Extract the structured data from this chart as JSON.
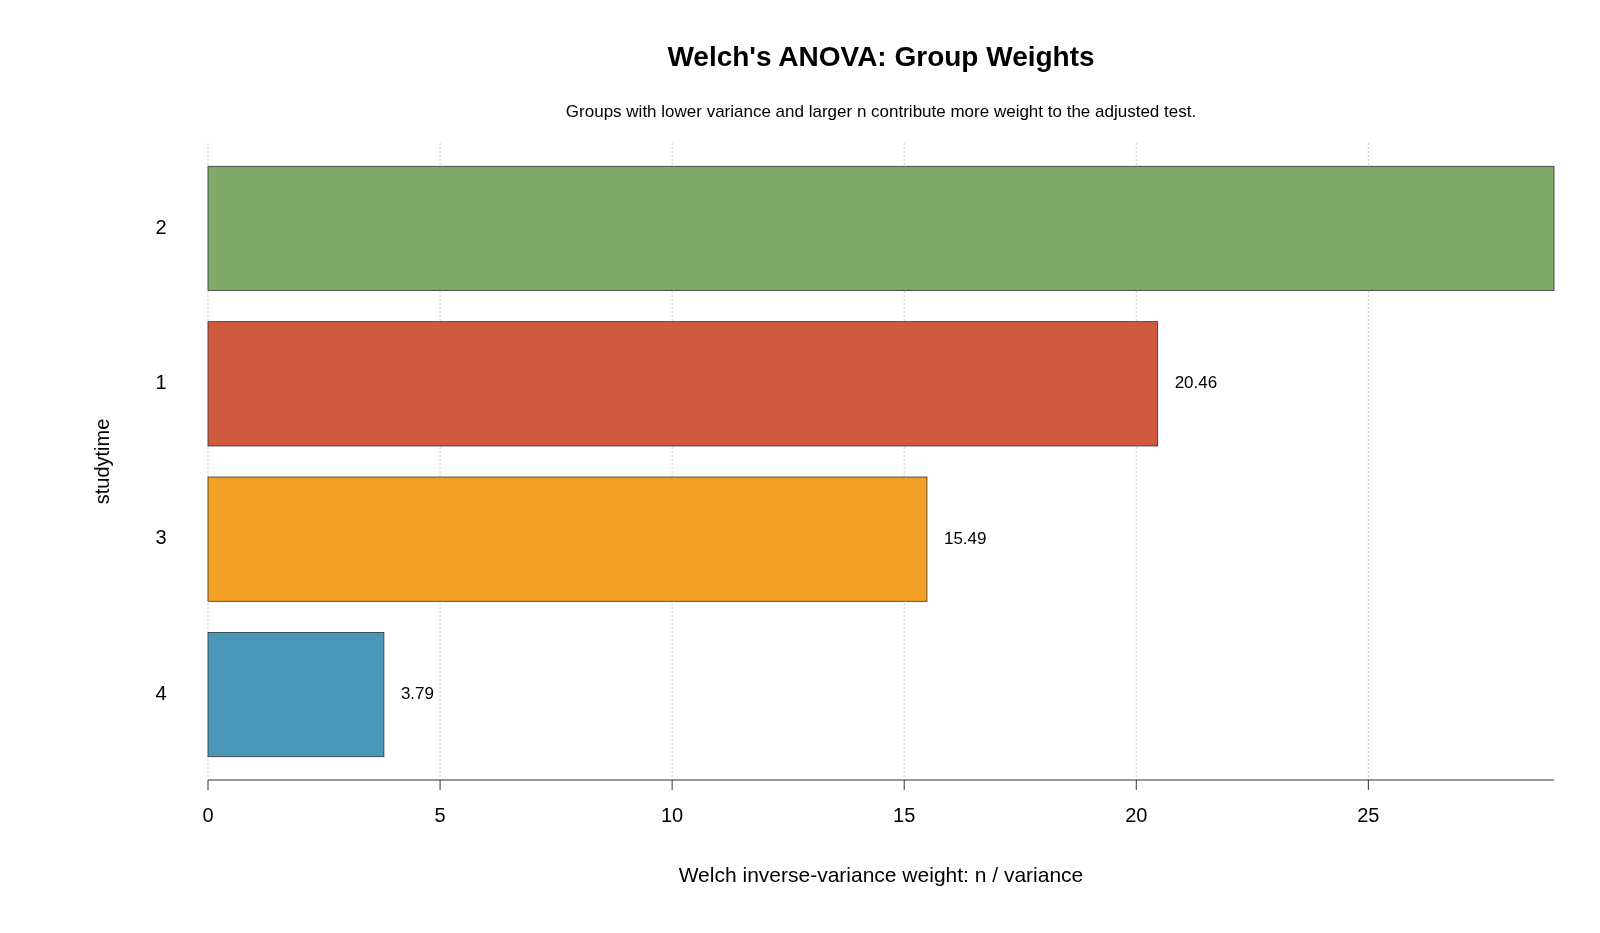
{
  "chart_data": {
    "type": "bar",
    "orientation": "horizontal",
    "title": "Welch's ANOVA: Group Weights",
    "subtitle": "Groups with lower variance and larger n contribute more weight to the adjusted test.",
    "xlabel": "Welch inverse-variance weight: n / variance",
    "ylabel": "studytime",
    "categories": [
      "2",
      "1",
      "3",
      "4"
    ],
    "values": [
      29.0,
      20.46,
      15.49,
      3.79
    ],
    "value_labels": [
      null,
      "20.46",
      "15.49",
      "3.79"
    ],
    "colors": [
      "#80a867",
      "#d05a40",
      "#f2a026",
      "#4b97b8"
    ],
    "xlim": [
      0,
      29.0
    ],
    "xticks": [
      0,
      5,
      10,
      15,
      20,
      25
    ],
    "grid": "x"
  }
}
